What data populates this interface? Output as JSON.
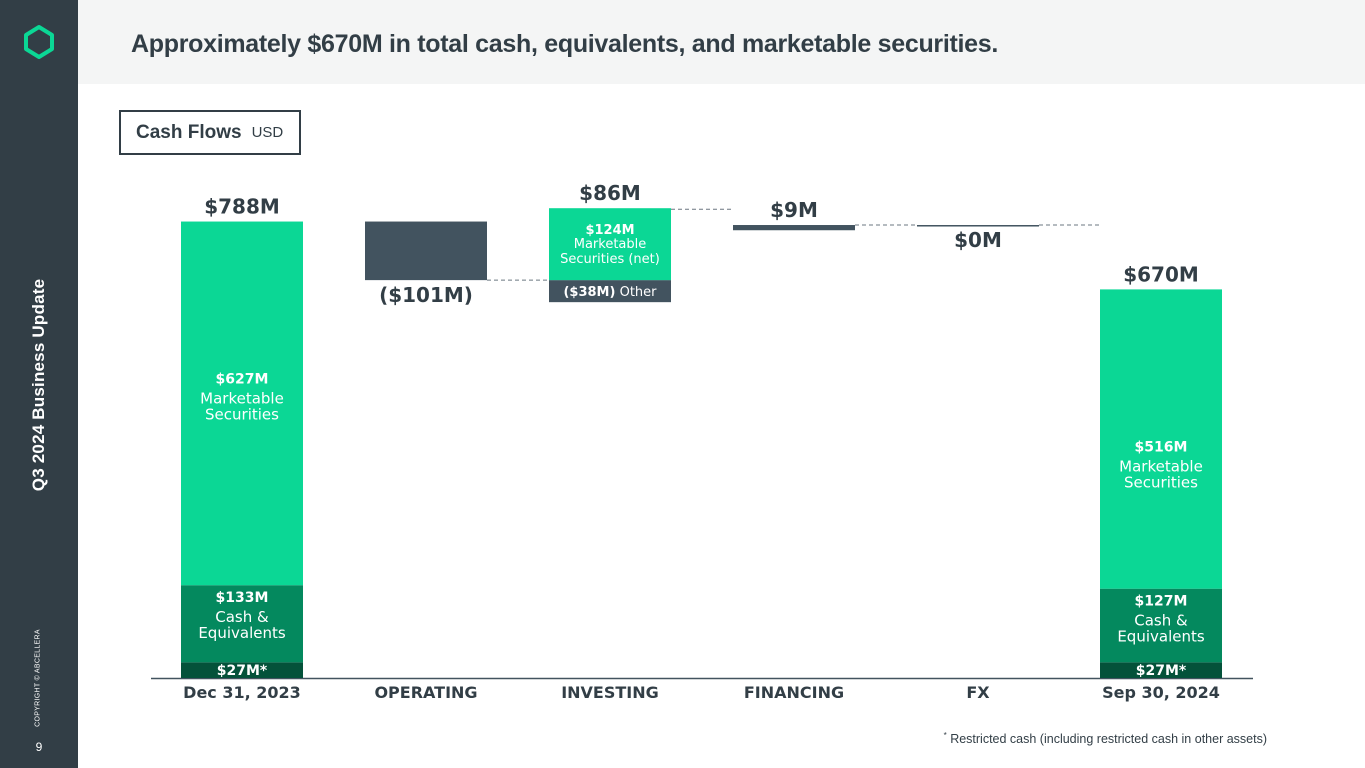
{
  "sidebar": {
    "vertical_title": "Q3 2024 Business Update",
    "copyright": "COPYRIGHT © ABCELLERA",
    "page_number": "9"
  },
  "header": {
    "title": "Approximately $670M in total cash, equivalents, and marketable securities."
  },
  "badge": {
    "title": "Cash Flows",
    "unit": "USD"
  },
  "colors": {
    "green": "#0bd795",
    "dark_green": "#04895e",
    "darkest_green": "#04523a",
    "slate": "#42535f",
    "text": "#323e46"
  },
  "chart_data": {
    "type": "bar",
    "categories": [
      "Dec 31, 2023",
      "OPERATING",
      "INVESTING",
      "FINANCING",
      "FX",
      "Sep 30, 2024"
    ],
    "ylim": [
      0,
      800
    ],
    "bars": [
      {
        "category": "Dec 31, 2023",
        "total_label": "$788M",
        "segments": [
          {
            "value": 27,
            "label": "$27M*",
            "color": "darkest_green"
          },
          {
            "value": 133,
            "label": "$133M",
            "sublabel": "Cash & Equivalents",
            "color": "dark_green"
          },
          {
            "value": 627,
            "label": "$627M",
            "sublabel": "Marketable Securities",
            "color": "green"
          }
        ]
      },
      {
        "category": "OPERATING",
        "change": -101,
        "label": "($101M)",
        "color": "slate"
      },
      {
        "category": "INVESTING",
        "change": 86,
        "label": "$86M",
        "segments": [
          {
            "value": -38,
            "label": "($38M)",
            "sublabel": "Other",
            "color": "slate"
          },
          {
            "value": 124,
            "label": "$124M",
            "sublabel": "Marketable Securities (net)",
            "color": "green"
          }
        ]
      },
      {
        "category": "FINANCING",
        "change": 9,
        "label": "$9M",
        "color": "slate"
      },
      {
        "category": "FX",
        "change": 0,
        "label": "$0M",
        "color": "slate"
      },
      {
        "category": "Sep 30, 2024",
        "total_label": "$670M",
        "segments": [
          {
            "value": 27,
            "label": "$27M*",
            "color": "darkest_green"
          },
          {
            "value": 127,
            "label": "$127M",
            "sublabel": "Cash & Equivalents",
            "color": "dark_green"
          },
          {
            "value": 516,
            "label": "$516M",
            "sublabel": "Marketable Securities",
            "color": "green"
          }
        ]
      }
    ]
  },
  "footnote": {
    "marker": "*",
    "text": "Restricted cash (including restricted cash in other assets)"
  }
}
